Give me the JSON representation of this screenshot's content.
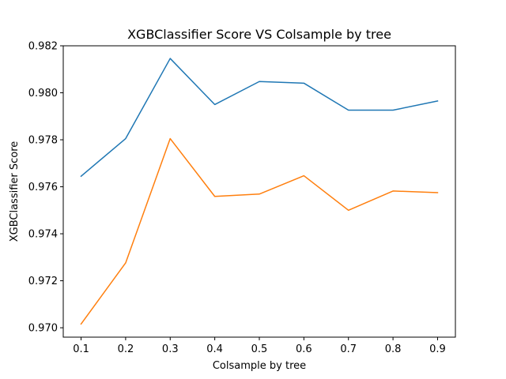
{
  "chart_data": {
    "type": "line",
    "title": "XGBClassifier Score VS Colsample by tree",
    "xlabel": "Colsample by tree",
    "ylabel": "XGBClassifier Score",
    "x": [
      0.1,
      0.2,
      0.3,
      0.4,
      0.5,
      0.6,
      0.7,
      0.8,
      0.9
    ],
    "xlim": [
      0.06,
      0.94
    ],
    "ylim": [
      0.9696,
      0.982
    ],
    "xticks": [
      "0.1",
      "0.2",
      "0.3",
      "0.4",
      "0.5",
      "0.6",
      "0.7",
      "0.8",
      "0.9"
    ],
    "yticks": [
      "0.970",
      "0.972",
      "0.974",
      "0.976",
      "0.978",
      "0.980",
      "0.982"
    ],
    "grid": false,
    "series": [
      {
        "color": "#1f77b4",
        "values": [
          0.97645,
          0.97805,
          0.98146,
          0.9795,
          0.98048,
          0.98041,
          0.97926,
          0.97926,
          0.97965
        ]
      },
      {
        "color": "#ff7f0e",
        "values": [
          0.97016,
          0.97276,
          0.97805,
          0.97559,
          0.97569,
          0.97647,
          0.975,
          0.97582,
          0.97575
        ]
      }
    ]
  }
}
